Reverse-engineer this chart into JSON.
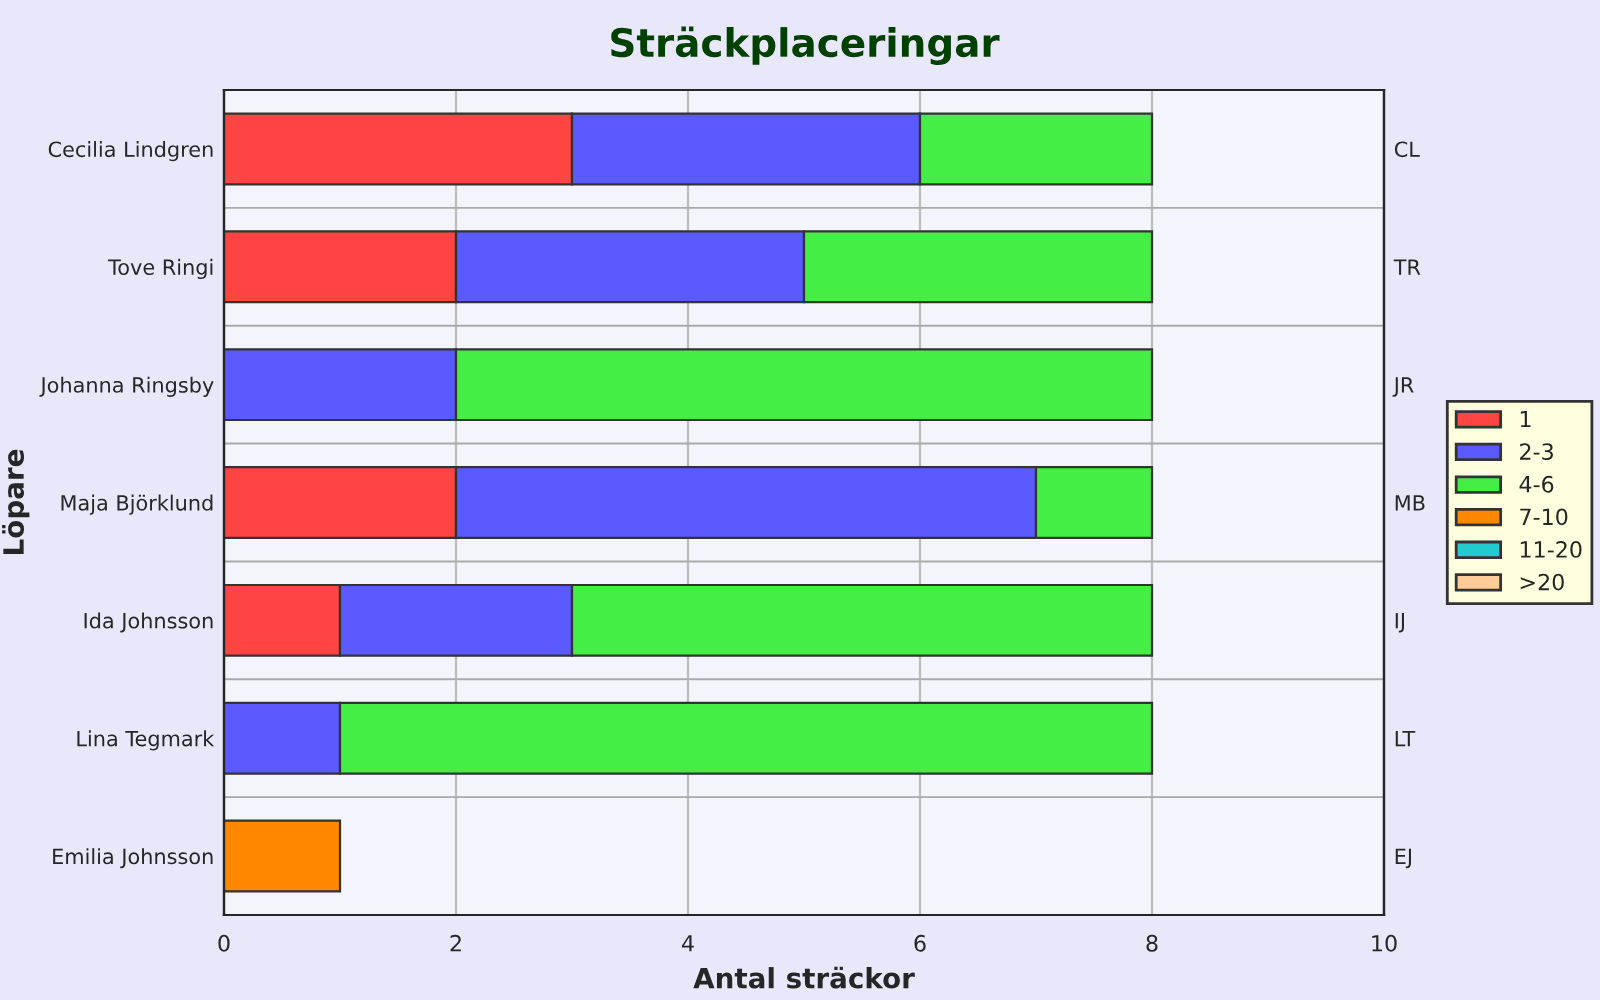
{
  "chart_data": {
    "type": "bar",
    "orientation": "horizontal",
    "stacked": true,
    "title": "Sträckplaceringar",
    "xlabel": "Antal sträckor",
    "ylabel": "Löpare",
    "categories": [
      "Cecilia Lindgren",
      "Tove Ringi",
      "Johanna Ringsby",
      "Maja Björklund",
      "Ida Johnsson",
      "Lina Tegmark",
      "Emilia Johnsson"
    ],
    "y2_categories": [
      "CL",
      "TR",
      "JR",
      "MB",
      "IJ",
      "LT",
      "EJ"
    ],
    "series": [
      {
        "name": "1",
        "color": "#ff4444",
        "values": [
          3,
          2,
          0,
          2,
          1,
          0,
          0
        ]
      },
      {
        "name": "2-3",
        "color": "#5a5aff",
        "values": [
          3,
          3,
          2,
          5,
          2,
          1,
          0
        ]
      },
      {
        "name": "4-6",
        "color": "#44ee44",
        "values": [
          2,
          3,
          6,
          1,
          5,
          7,
          0
        ]
      },
      {
        "name": "7-10",
        "color": "#ff8800",
        "values": [
          0,
          0,
          0,
          0,
          0,
          0,
          1
        ]
      },
      {
        "name": "11-20",
        "color": "#22cccc",
        "values": [
          0,
          0,
          0,
          0,
          0,
          0,
          0
        ]
      },
      {
        "name": ">20",
        "color": "#ffcc99",
        "values": [
          0,
          0,
          0,
          0,
          0,
          0,
          0
        ]
      }
    ],
    "xlim": [
      0,
      10
    ],
    "xticks": [
      0,
      2,
      4,
      6,
      8,
      10
    ],
    "grid": "x",
    "legend": "right"
  }
}
